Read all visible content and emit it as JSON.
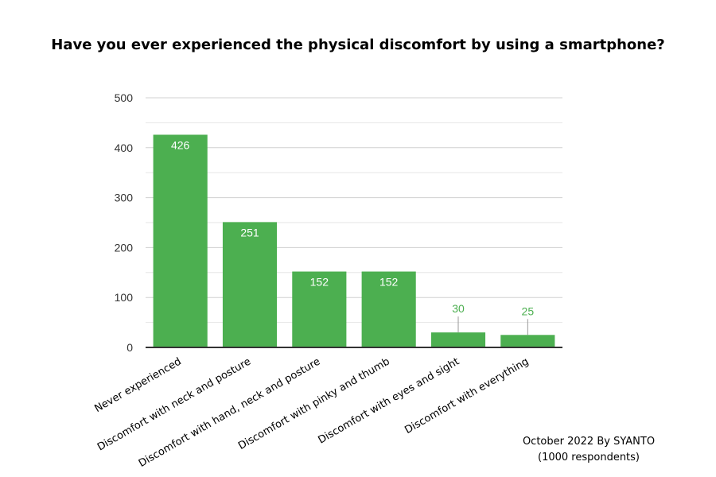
{
  "chart_data": {
    "type": "bar",
    "title": "Have you ever experienced the physical discomfort by using a smartphone?",
    "categories": [
      "Never experienced",
      "Discomfort with neck and posture",
      "Discomfort with hand, neck and posture",
      "Discomfort with pinky and thumb",
      "Discomfort with eyes and sight",
      "Discomfort with everything"
    ],
    "values": [
      426,
      251,
      152,
      152,
      30,
      25
    ],
    "xlabel": "",
    "ylabel": "",
    "ylim": [
      0,
      500
    ],
    "yticks": [
      0,
      100,
      200,
      300,
      400,
      500
    ],
    "grid": true,
    "bar_color": "#4caf50",
    "annotation": [
      "October 2022 By SYANTO",
      "(1000 respondents)"
    ]
  }
}
